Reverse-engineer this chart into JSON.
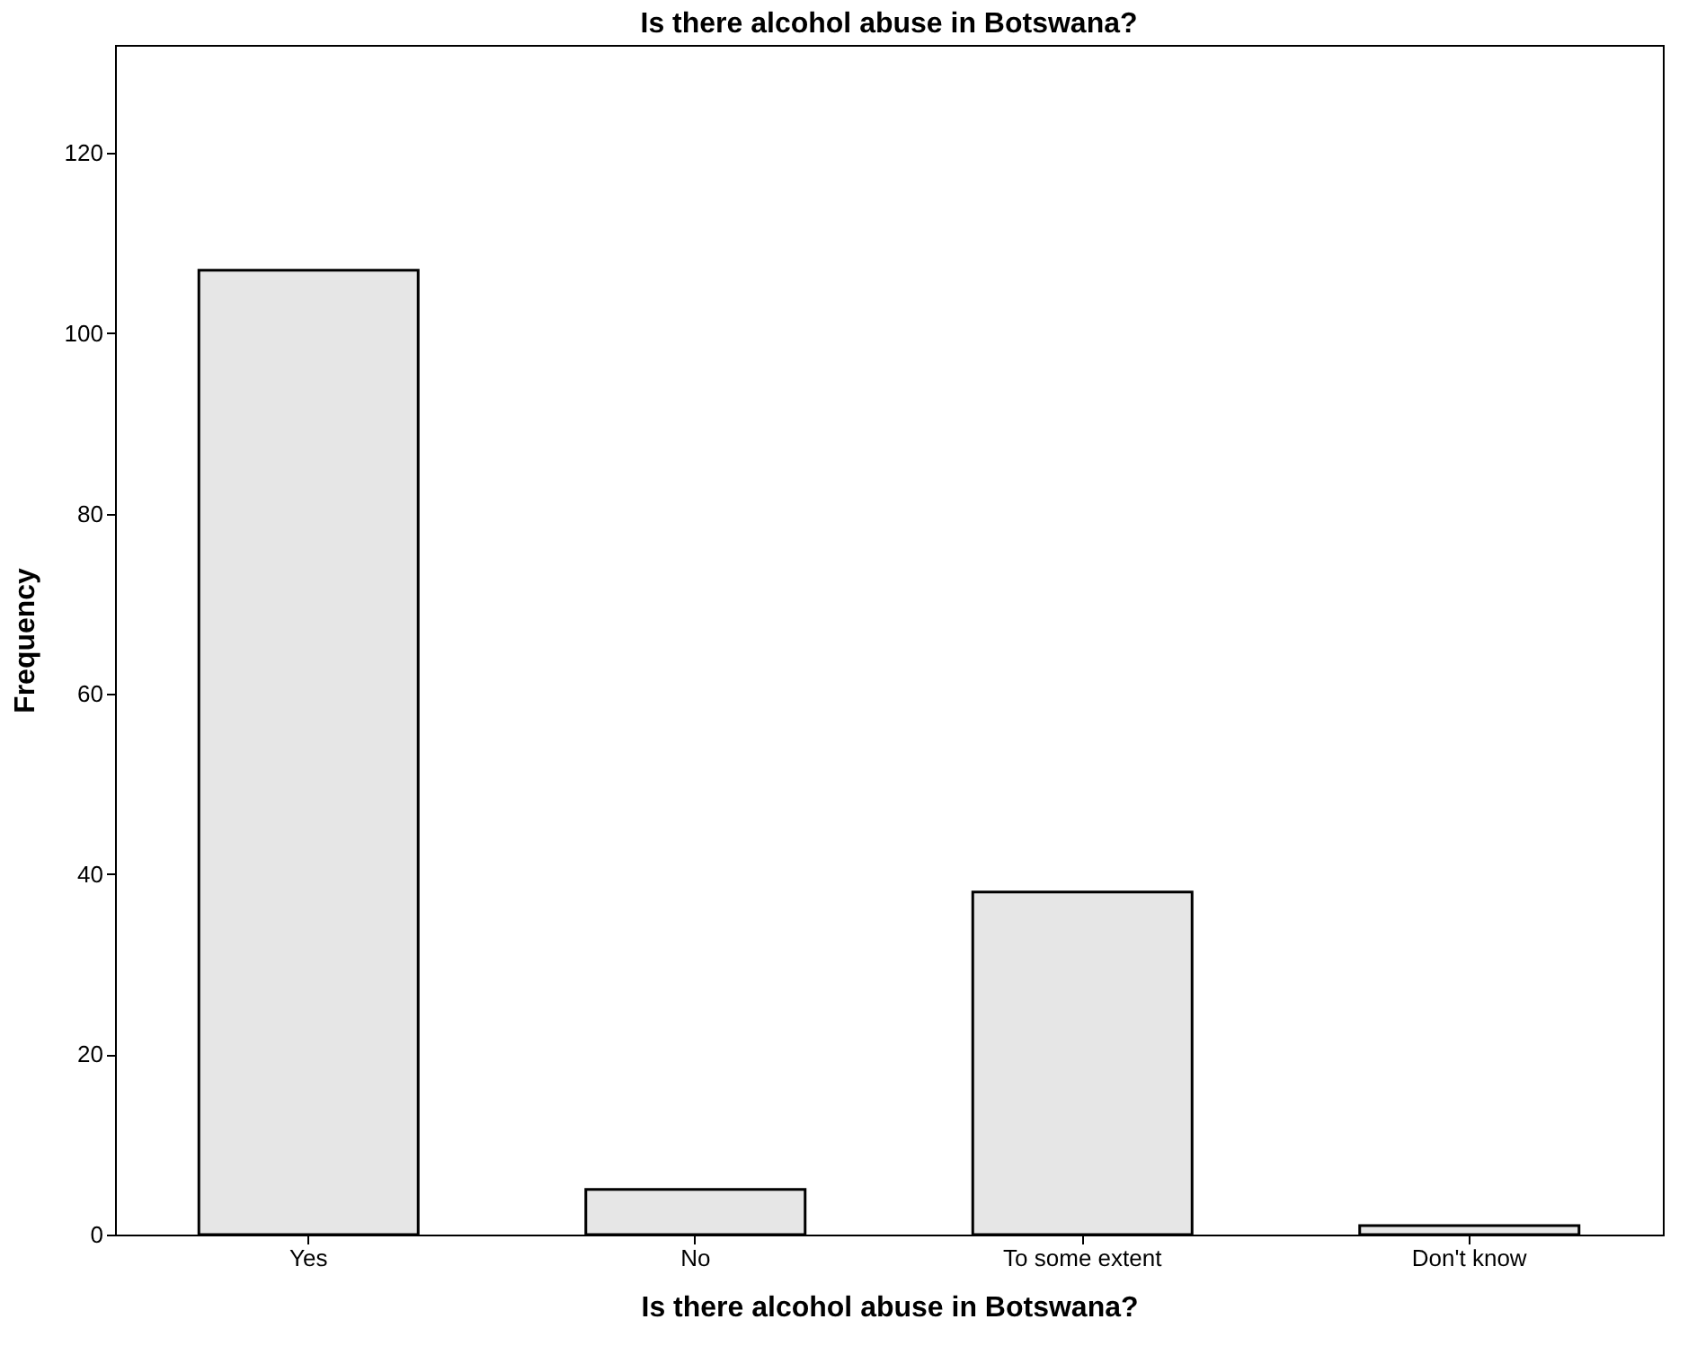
{
  "chart_data": {
    "type": "bar",
    "title": "Is there alcohol abuse in Botswana?",
    "xlabel": "Is there alcohol abuse in Botswana?",
    "ylabel": "Frequency",
    "categories": [
      "Yes",
      "No",
      "To some extent",
      "Don't know"
    ],
    "values": [
      107,
      5,
      38,
      1
    ],
    "color": "#e6e6e6",
    "ylim": [
      0,
      132
    ],
    "yticks": [
      0,
      20,
      40,
      60,
      80,
      100,
      120
    ],
    "grid": false
  }
}
